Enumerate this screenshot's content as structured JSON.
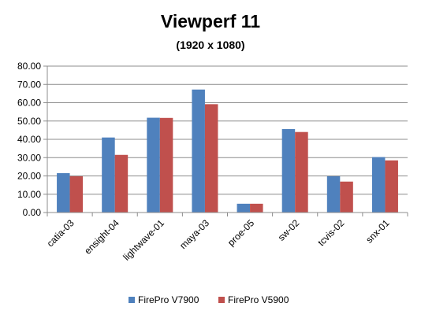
{
  "chart_data": {
    "type": "bar",
    "title": "Viewperf 11",
    "subtitle": "(1920 x 1080)",
    "xlabel": "",
    "ylabel": "",
    "categories": [
      "catia-03",
      "ensight-04",
      "lightwave-01",
      "maya-03",
      "proe-05",
      "sw-02",
      "tcvis-02",
      "snx-01"
    ],
    "series": [
      {
        "name": "FirePro V7900",
        "color": "#4F81BD",
        "values": [
          21.5,
          41.0,
          51.8,
          67.2,
          4.8,
          45.6,
          19.8,
          30.3
        ]
      },
      {
        "name": "FirePro V5900",
        "color": "#C0504D",
        "values": [
          19.8,
          31.5,
          51.7,
          59.2,
          4.8,
          44.0,
          16.9,
          28.5
        ]
      }
    ],
    "ylim": [
      0,
      80
    ],
    "yticks": [
      "0.00",
      "10.00",
      "20.00",
      "30.00",
      "40.00",
      "50.00",
      "60.00",
      "70.00",
      "80.00"
    ],
    "grid": true,
    "legend_position": "bottom"
  }
}
